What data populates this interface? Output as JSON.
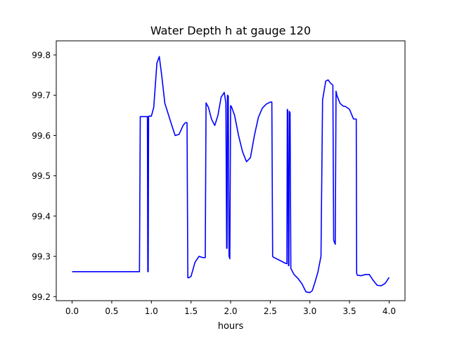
{
  "chart_data": {
    "type": "line",
    "title": "Water Depth h at gauge 120",
    "xlabel": "hours",
    "ylabel": "",
    "xlim": [
      -0.2,
      4.2
    ],
    "ylim": [
      99.19,
      99.835
    ],
    "xticks": [
      0.0,
      0.5,
      1.0,
      1.5,
      2.0,
      2.5,
      3.0,
      3.5,
      4.0
    ],
    "xtick_labels": [
      "0.0",
      "0.5",
      "1.0",
      "1.5",
      "2.0",
      "2.5",
      "3.0",
      "3.5",
      "4.0"
    ],
    "yticks": [
      99.2,
      99.3,
      99.4,
      99.5,
      99.6,
      99.7,
      99.8
    ],
    "ytick_labels": [
      "99.2",
      "99.3",
      "99.4",
      "99.5",
      "99.6",
      "99.7",
      "99.8"
    ],
    "grid": false,
    "series": [
      {
        "color": "#0000ff",
        "x": [
          0.0,
          0.5,
          0.85,
          0.86,
          0.95,
          0.955,
          0.96,
          0.965,
          1.0,
          1.03,
          1.07,
          1.1,
          1.13,
          1.17,
          1.25,
          1.3,
          1.35,
          1.4,
          1.43,
          1.45,
          1.46,
          1.47,
          1.5,
          1.55,
          1.6,
          1.65,
          1.68,
          1.69,
          1.72,
          1.76,
          1.8,
          1.84,
          1.88,
          1.92,
          1.94,
          1.95,
          1.955,
          1.96,
          1.97,
          1.98,
          1.985,
          1.99,
          2.0,
          2.01,
          2.05,
          2.1,
          2.15,
          2.2,
          2.25,
          2.3,
          2.35,
          2.4,
          2.45,
          2.5,
          2.52,
          2.53,
          2.54,
          2.55,
          2.6,
          2.65,
          2.7,
          2.71,
          2.715,
          2.72,
          2.73,
          2.735,
          2.74,
          2.75,
          2.76,
          2.8,
          2.85,
          2.9,
          2.95,
          3.0,
          3.03,
          3.06,
          3.1,
          3.14,
          3.16,
          3.17,
          3.2,
          3.23,
          3.26,
          3.29,
          3.3,
          3.31,
          3.32,
          3.33,
          3.34,
          3.38,
          3.42,
          3.45,
          3.5,
          3.55,
          3.585,
          3.59,
          3.6,
          3.65,
          3.7,
          3.75,
          3.8,
          3.85,
          3.9,
          3.95,
          4.0
        ],
        "y": [
          99.262,
          99.262,
          99.262,
          99.647,
          99.647,
          99.262,
          99.262,
          99.648,
          99.648,
          99.67,
          99.78,
          99.796,
          99.75,
          99.68,
          99.63,
          99.6,
          99.603,
          99.625,
          99.632,
          99.632,
          99.247,
          99.247,
          99.25,
          99.285,
          99.3,
          99.297,
          99.297,
          99.681,
          99.67,
          99.64,
          99.625,
          99.65,
          99.695,
          99.707,
          99.68,
          99.32,
          99.32,
          99.7,
          99.698,
          99.3,
          99.298,
          99.294,
          99.674,
          99.672,
          99.65,
          99.6,
          99.56,
          99.535,
          99.545,
          99.6,
          99.645,
          99.668,
          99.678,
          99.683,
          99.683,
          99.3,
          99.298,
          99.297,
          99.292,
          99.287,
          99.282,
          99.282,
          99.665,
          99.662,
          99.277,
          99.277,
          99.66,
          99.656,
          99.27,
          99.255,
          99.245,
          99.232,
          99.212,
          99.21,
          99.215,
          99.233,
          99.26,
          99.3,
          99.688,
          99.7,
          99.735,
          99.738,
          99.73,
          99.725,
          99.34,
          99.335,
          99.33,
          99.71,
          99.7,
          99.68,
          99.673,
          99.672,
          99.665,
          99.641,
          99.641,
          99.258,
          99.253,
          99.252,
          99.255,
          99.255,
          99.24,
          99.228,
          99.227,
          99.233,
          99.248
        ]
      }
    ]
  }
}
